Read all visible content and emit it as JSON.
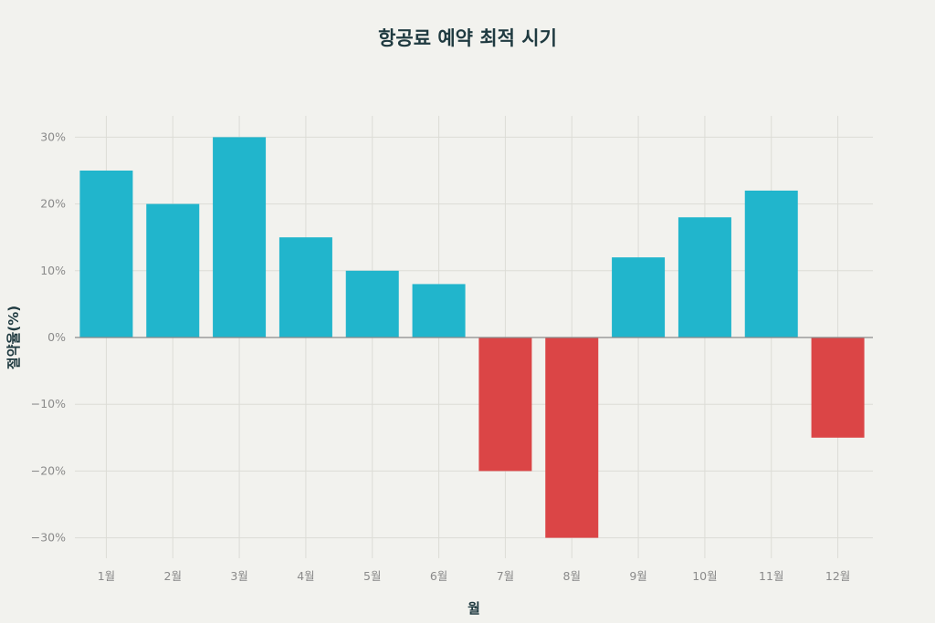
{
  "chart_data": {
    "type": "bar",
    "title": "항공료 예약 최적 시기",
    "xlabel": "월",
    "ylabel": "절약율(%)",
    "categories": [
      "1월",
      "2월",
      "3월",
      "4월",
      "5월",
      "6월",
      "7월",
      "8월",
      "9월",
      "10월",
      "11월",
      "12월"
    ],
    "values": [
      25,
      20,
      30,
      15,
      10,
      8,
      -20,
      -30,
      12,
      18,
      22,
      -15
    ],
    "ylim": [
      -33,
      33
    ],
    "yticks": [
      30,
      20,
      10,
      0,
      -10,
      -20,
      -30
    ],
    "ytick_labels": [
      "30%",
      "20%",
      "10%",
      "0%",
      "−10%",
      "−20%",
      "−30%"
    ],
    "grid": true,
    "legend": null,
    "colors": {
      "positive": "#21b5cc",
      "negative": "#db4546",
      "grid": "#dcdcd6",
      "zero_line": "#8a8a8a"
    }
  }
}
